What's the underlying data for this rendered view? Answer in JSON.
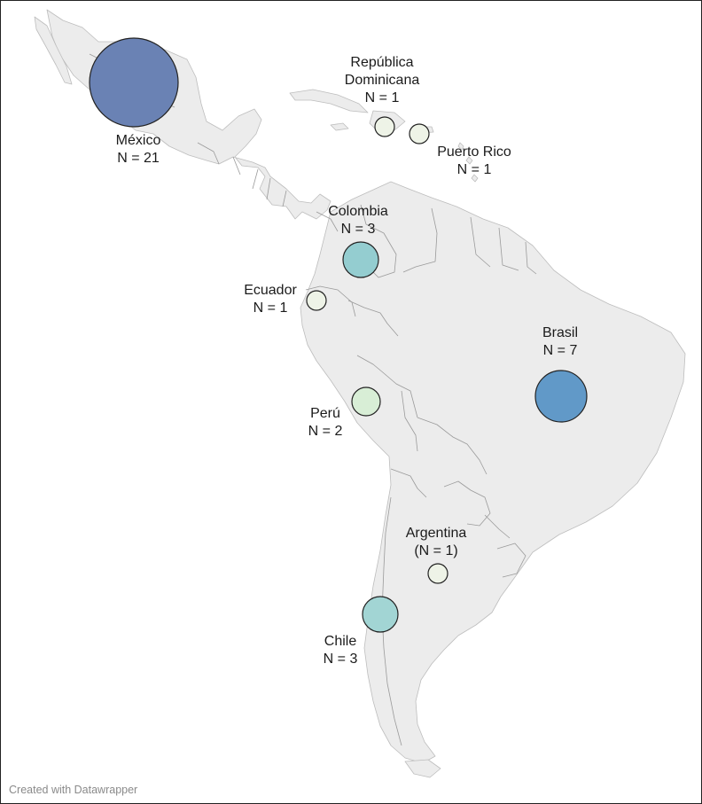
{
  "map": {
    "points": [
      {
        "country": "México",
        "count_label": "N = 21",
        "n": 21,
        "color": "#6a82b4"
      },
      {
        "country": "República Dominicana",
        "lines": [
          "República",
          "Dominicana",
          "N = 1"
        ],
        "n": 1,
        "color": "#eef3e7"
      },
      {
        "country": "Puerto Rico",
        "count_label": "N = 1",
        "n": 1,
        "color": "#eef3e7"
      },
      {
        "country": "Colombia",
        "count_label": "N = 3",
        "n": 3,
        "color": "#94cdd0"
      },
      {
        "country": "Ecuador",
        "count_label": "N = 1",
        "n": 1,
        "color": "#eef3e7"
      },
      {
        "country": "Brasil",
        "count_label": "N = 7",
        "n": 7,
        "color": "#6199c8"
      },
      {
        "country": "Perú",
        "count_label": "N = 2",
        "n": 2,
        "color": "#d8eed6"
      },
      {
        "country": "Argentina",
        "count_label": "(N = 1)",
        "n": 1,
        "color": "#eef3e7"
      },
      {
        "country": "Chile",
        "count_label": "N = 3",
        "n": 3,
        "color": "#a2d5d4"
      }
    ],
    "land_color": "#ececec",
    "border_color": "#9a9a9a",
    "bubble_stroke": "#222222"
  },
  "footer": {
    "credit": "Created with Datawrapper"
  }
}
